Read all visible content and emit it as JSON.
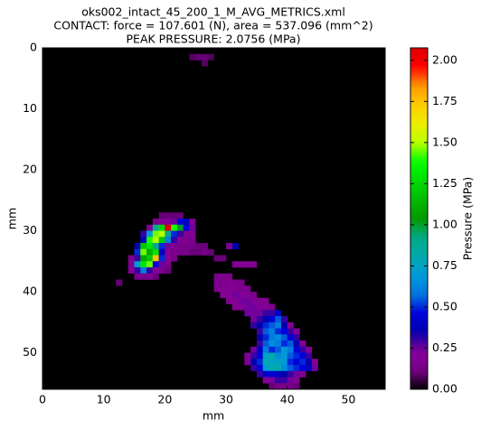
{
  "chart_data": {
    "type": "heatmap",
    "title": [
      "oks002_intact_45_200_1_M_AVG_METRICS.xml",
      "CONTACT: force = 107.601 (N), area = 537.096 (mm^2)",
      "PEAK PRESSURE: 2.0756 (MPa)"
    ],
    "x_label": "mm",
    "y_label": "mm",
    "xlim": [
      0,
      56
    ],
    "xticks": [
      0,
      10,
      20,
      30,
      40,
      50
    ],
    "ylim": [
      56,
      0
    ],
    "yticks": [
      0,
      10,
      20,
      30,
      40,
      50
    ],
    "colormap": "nipy_spectral",
    "background": "#000000",
    "colorbar": {
      "label": "Pressure (MPa)",
      "clim": [
        0,
        2.0756
      ],
      "ticks": [
        {
          "value": 0,
          "label": "0.00"
        },
        {
          "value": 0.25,
          "label": "0.25"
        },
        {
          "value": 0.5,
          "label": "0.50"
        },
        {
          "value": 0.75,
          "label": "0.75"
        },
        {
          "value": 1,
          "label": "1.00"
        },
        {
          "value": 1.25,
          "label": "1.25"
        },
        {
          "value": 1.5,
          "label": "1.50"
        },
        {
          "value": 1.75,
          "label": "1.75"
        },
        {
          "value": 2,
          "label": "2.00"
        }
      ]
    },
    "rows": [
      {
        "y": 1,
        "x": [
          24,
          25,
          26,
          27
        ],
        "values": [
          0.08,
          0.1,
          0.1,
          0.08
        ]
      },
      {
        "y": 2,
        "x": [
          26
        ],
        "values": [
          0.08
        ]
      },
      {
        "y": 27,
        "x": [
          19,
          20,
          21,
          22
        ],
        "values": [
          0.1,
          0.1,
          0.1,
          0.1
        ]
      },
      {
        "y": 28,
        "x": [
          18,
          19,
          20,
          21,
          22,
          23,
          24
        ],
        "values": [
          0.15,
          0.2,
          0.2,
          0.25,
          0.45,
          0.4,
          0.15
        ]
      },
      {
        "y": 29,
        "x": [
          17,
          18,
          19,
          20,
          21,
          22,
          23,
          24
        ],
        "values": [
          0.2,
          0.9,
          1.25,
          2.0756,
          1.4,
          1.0,
          0.45,
          0.25
        ]
      },
      {
        "y": 30,
        "x": [
          16,
          17,
          18,
          19,
          20,
          21,
          22,
          23,
          24
        ],
        "values": [
          0.3,
          0.7,
          1.45,
          1.5,
          0.9,
          0.5,
          0.3,
          0.2,
          0.15
        ]
      },
      {
        "y": 31,
        "x": [
          16,
          17,
          18,
          19,
          20,
          21,
          22,
          23,
          24
        ],
        "values": [
          0.4,
          1.4,
          1.5,
          1.2,
          0.6,
          0.3,
          0.2,
          0.15,
          0.15
        ]
      },
      {
        "y": 32,
        "x": [
          15,
          16,
          17,
          18,
          19,
          20,
          21,
          22,
          23,
          24,
          25,
          26,
          30,
          31
        ],
        "values": [
          0.35,
          1.2,
          1.3,
          0.9,
          0.5,
          0.25,
          0.15,
          0.12,
          0.12,
          0.12,
          0.1,
          0.1,
          0.15,
          0.35
        ]
      },
      {
        "y": 33,
        "x": [
          15,
          16,
          17,
          18,
          19,
          20,
          21,
          22,
          23,
          24,
          25,
          26,
          27
        ],
        "values": [
          0.5,
          1.45,
          1.1,
          1.3,
          0.4,
          0.2,
          0.15,
          0.12,
          0.12,
          0.1,
          0.1,
          0.12,
          0.1
        ]
      },
      {
        "y": 34,
        "x": [
          14,
          15,
          16,
          17,
          18,
          19,
          20,
          21,
          28,
          29
        ],
        "values": [
          0.15,
          0.3,
          1.1,
          1.2,
          1.75,
          0.5,
          0.2,
          0.15,
          0.1,
          0.1
        ]
      },
      {
        "y": 35,
        "x": [
          14,
          15,
          16,
          17,
          18,
          19,
          20,
          31,
          32,
          33,
          34
        ],
        "values": [
          0.2,
          0.7,
          1.3,
          1.45,
          0.45,
          0.25,
          0.15,
          0.2,
          0.2,
          0.2,
          0.2
        ]
      },
      {
        "y": 36,
        "x": [
          14,
          15,
          16,
          17,
          18,
          19,
          20
        ],
        "values": [
          0.2,
          0.3,
          0.6,
          0.3,
          0.2,
          0.15,
          0.1
        ]
      },
      {
        "y": 37,
        "x": [
          15,
          16,
          17,
          18,
          28,
          29,
          30
        ],
        "values": [
          0.15,
          0.15,
          0.2,
          0.1,
          0.12,
          0.15,
          0.12
        ]
      },
      {
        "y": 38,
        "x": [
          12,
          28,
          29,
          30,
          31,
          32
        ],
        "values": [
          0.1,
          0.15,
          0.15,
          0.2,
          0.15,
          0.12
        ]
      },
      {
        "y": 39,
        "x": [
          28,
          29,
          30,
          31,
          32,
          33
        ],
        "values": [
          0.15,
          0.2,
          0.2,
          0.2,
          0.15,
          0.12
        ]
      },
      {
        "y": 40,
        "x": [
          29,
          30,
          31,
          32,
          33,
          34
        ],
        "values": [
          0.2,
          0.2,
          0.25,
          0.2,
          0.2,
          0.15
        ]
      },
      {
        "y": 41,
        "x": [
          30,
          31,
          32,
          33,
          34,
          35,
          36
        ],
        "values": [
          0.2,
          0.2,
          0.25,
          0.25,
          0.2,
          0.2,
          0.15
        ]
      },
      {
        "y": 42,
        "x": [
          31,
          32,
          33,
          34,
          35,
          36,
          37
        ],
        "values": [
          0.2,
          0.2,
          0.25,
          0.25,
          0.2,
          0.2,
          0.15
        ]
      },
      {
        "y": 43,
        "x": [
          33,
          34,
          35,
          36,
          37,
          38
        ],
        "values": [
          0.25,
          0.25,
          0.25,
          0.3,
          0.3,
          0.4
        ]
      },
      {
        "y": 44,
        "x": [
          34,
          35,
          36,
          37,
          38,
          39
        ],
        "values": [
          0.25,
          0.3,
          0.35,
          0.45,
          0.55,
          0.3
        ]
      },
      {
        "y": 45,
        "x": [
          34,
          35,
          36,
          37,
          38,
          39,
          40
        ],
        "values": [
          0.3,
          0.35,
          0.5,
          0.55,
          0.6,
          0.35,
          0.2
        ]
      },
      {
        "y": 46,
        "x": [
          35,
          36,
          37,
          38,
          39,
          40,
          41
        ],
        "values": [
          0.3,
          0.55,
          0.6,
          0.5,
          0.45,
          0.3,
          0.2
        ]
      },
      {
        "y": 47,
        "x": [
          35,
          36,
          37,
          38,
          39,
          40,
          41
        ],
        "values": [
          0.35,
          0.5,
          0.6,
          0.65,
          0.55,
          0.45,
          0.3
        ]
      },
      {
        "y": 48,
        "x": [
          35,
          36,
          37,
          38,
          39,
          40,
          41,
          42
        ],
        "values": [
          0.3,
          0.55,
          0.65,
          0.6,
          0.5,
          0.55,
          0.35,
          0.2
        ]
      },
      {
        "y": 49,
        "x": [
          34,
          35,
          36,
          37,
          38,
          39,
          40,
          41,
          42,
          43
        ],
        "values": [
          0.25,
          0.4,
          0.6,
          0.5,
          0.55,
          0.7,
          0.6,
          0.45,
          0.3,
          0.2
        ]
      },
      {
        "y": 50,
        "x": [
          33,
          34,
          35,
          36,
          37,
          38,
          39,
          40,
          41,
          42,
          43
        ],
        "values": [
          0.2,
          0.3,
          0.45,
          0.75,
          0.8,
          0.65,
          0.7,
          0.55,
          0.5,
          0.45,
          0.3
        ]
      },
      {
        "y": 51,
        "x": [
          33,
          34,
          35,
          36,
          37,
          38,
          39,
          40,
          41,
          42,
          43,
          44
        ],
        "values": [
          0.2,
          0.35,
          0.5,
          0.8,
          0.75,
          0.75,
          0.7,
          0.5,
          0.45,
          0.5,
          0.35,
          0.2
        ]
      },
      {
        "y": 52,
        "x": [
          34,
          35,
          36,
          37,
          38,
          39,
          40,
          41,
          42,
          43,
          44
        ],
        "values": [
          0.3,
          0.45,
          0.7,
          0.8,
          0.8,
          0.65,
          0.55,
          0.5,
          0.45,
          0.4,
          0.25
        ]
      },
      {
        "y": 53,
        "x": [
          35,
          36,
          37,
          38,
          39,
          40,
          41,
          42
        ],
        "values": [
          0.3,
          0.4,
          0.45,
          0.4,
          0.35,
          0.3,
          0.25,
          0.2
        ]
      },
      {
        "y": 54,
        "x": [
          36,
          37,
          38,
          39,
          40,
          41
        ],
        "values": [
          0.2,
          0.25,
          0.3,
          0.3,
          0.25,
          0.2
        ]
      },
      {
        "y": 55,
        "x": [
          37,
          38,
          39,
          40,
          41
        ],
        "values": [
          0.1,
          0.12,
          0.12,
          0.12,
          0.1
        ]
      }
    ]
  }
}
